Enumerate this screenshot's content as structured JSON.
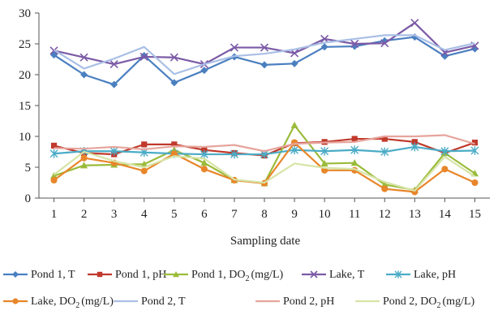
{
  "chart_data": {
    "type": "line",
    "title": "",
    "xlabel": "Sampling date",
    "ylabel": "",
    "x": [
      1,
      2,
      3,
      4,
      5,
      6,
      7,
      8,
      9,
      10,
      11,
      12,
      13,
      14,
      15
    ],
    "xlim": [
      0.5,
      15.5
    ],
    "ylim": [
      0,
      30
    ],
    "yticks": [
      0,
      5,
      10,
      15,
      20,
      25,
      30
    ],
    "grid": false,
    "legend_position": "bottom",
    "series": [
      {
        "name": "Pond 1, T",
        "name_subscript": "",
        "name_suffix": "",
        "color": "#4a7fc0",
        "marker": "diamond",
        "values": [
          23.2,
          20.0,
          18.4,
          23.1,
          18.7,
          20.7,
          22.9,
          21.6,
          21.8,
          24.5,
          24.6,
          25.5,
          26.1,
          23.0,
          24.2
        ]
      },
      {
        "name": "Pond 1, pH",
        "name_subscript": "",
        "name_suffix": "",
        "color": "#c0392b",
        "marker": "square",
        "values": [
          8.5,
          7.3,
          7.1,
          8.7,
          8.7,
          7.8,
          7.3,
          6.9,
          8.9,
          9.1,
          9.6,
          9.6,
          9.1,
          7.3,
          9.0
        ]
      },
      {
        "name": "Pond 1, DO",
        "name_subscript": "2",
        "name_suffix": "(mg/L)",
        "color": "#9bbb3b",
        "marker": "triangle",
        "values": [
          3.6,
          5.3,
          5.4,
          5.5,
          7.8,
          5.7,
          2.9,
          2.4,
          11.8,
          5.6,
          5.7,
          2.2,
          1.3,
          7.3,
          4.0
        ]
      },
      {
        "name": "Lake, T",
        "name_subscript": "",
        "name_suffix": "",
        "color": "#7b5aa6",
        "marker": "x",
        "values": [
          23.9,
          22.8,
          21.7,
          22.9,
          22.8,
          21.7,
          24.4,
          24.4,
          23.5,
          25.8,
          25.0,
          25.1,
          28.4,
          23.6,
          24.7
        ]
      },
      {
        "name": "Lake, pH",
        "name_subscript": "",
        "name_suffix": "",
        "color": "#4bacc6",
        "marker": "star",
        "values": [
          7.2,
          7.6,
          7.6,
          7.4,
          7.2,
          7.1,
          7.1,
          7.1,
          7.8,
          7.6,
          7.8,
          7.5,
          8.3,
          7.6,
          7.7
        ]
      },
      {
        "name": "Lake, DO",
        "name_subscript": "2",
        "name_suffix": "(mg/L)",
        "color": "#e8862a",
        "marker": "circle",
        "values": [
          2.9,
          6.5,
          5.7,
          4.4,
          7.2,
          4.7,
          2.9,
          2.4,
          9.0,
          4.5,
          4.5,
          1.5,
          1.0,
          4.7,
          2.5
        ]
      },
      {
        "name": "Pond 2, T",
        "name_subscript": "",
        "name_suffix": "",
        "color": "#a9bfe6",
        "marker": "none",
        "values": [
          24.0,
          21.0,
          22.6,
          24.5,
          20.1,
          21.7,
          23.0,
          23.4,
          24.1,
          25.2,
          25.8,
          26.4,
          26.4,
          24.0,
          25.1
        ]
      },
      {
        "name": "Pond 2, pH",
        "name_subscript": "",
        "name_suffix": "",
        "color": "#e6a49c",
        "marker": "none",
        "values": [
          8.1,
          8.0,
          8.3,
          7.9,
          8.4,
          8.3,
          8.6,
          7.6,
          8.8,
          9.0,
          9.1,
          10.0,
          10.0,
          10.2,
          8.8
        ]
      },
      {
        "name": "Pond 2, DO",
        "name_subscript": "2",
        "name_suffix": "(mg/L)",
        "color": "#d6e4a6",
        "marker": "none",
        "values": [
          3.8,
          7.5,
          6.0,
          5.0,
          6.8,
          6.4,
          3.0,
          2.5,
          5.6,
          4.9,
          4.7,
          2.6,
          1.2,
          6.7,
          3.5
        ]
      }
    ]
  }
}
